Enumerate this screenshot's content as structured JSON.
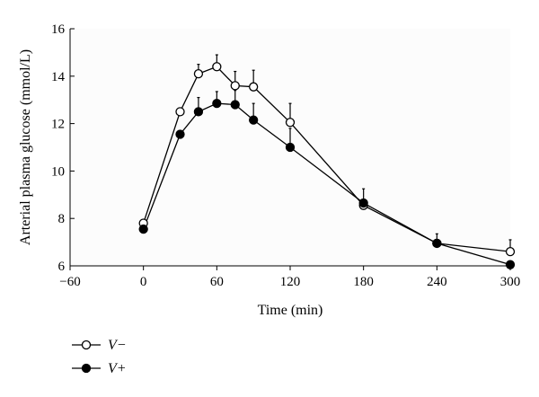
{
  "chart_data": {
    "type": "line",
    "xlabel": "Time (min)",
    "ylabel": "Arterial plasma glucose (mmol/L)",
    "xlim": [
      -60,
      300
    ],
    "ylim": [
      6,
      16
    ],
    "xticks": [
      -60,
      0,
      60,
      120,
      180,
      240,
      300
    ],
    "yticks": [
      6,
      8,
      10,
      12,
      14,
      16
    ],
    "xtick_labels": [
      "−60",
      "0",
      "60",
      "120",
      "180",
      "240",
      "300"
    ],
    "ytick_labels": [
      "6",
      "8",
      "10",
      "12",
      "14",
      "16"
    ],
    "grid": false,
    "legend_position": "bottom-left",
    "series": [
      {
        "name": "V−",
        "marker": "open-circle",
        "x": [
          0,
          30,
          45,
          60,
          75,
          90,
          120,
          180,
          240,
          300
        ],
        "y": [
          7.8,
          12.5,
          14.1,
          14.4,
          13.6,
          13.55,
          12.05,
          8.55,
          6.95,
          6.6
        ],
        "err": [
          0,
          0,
          0.4,
          0.5,
          0.6,
          0.7,
          0.8,
          0,
          0,
          0.5
        ]
      },
      {
        "name": "V+",
        "marker": "filled-circle",
        "x": [
          0,
          30,
          45,
          60,
          75,
          90,
          120,
          180,
          240,
          300
        ],
        "y": [
          7.55,
          11.55,
          12.5,
          12.85,
          12.8,
          12.15,
          11.0,
          8.65,
          6.95,
          6.05
        ],
        "err": [
          0,
          0,
          0.6,
          0.5,
          0.6,
          0.7,
          0.8,
          0.6,
          0.4,
          0
        ]
      }
    ]
  }
}
